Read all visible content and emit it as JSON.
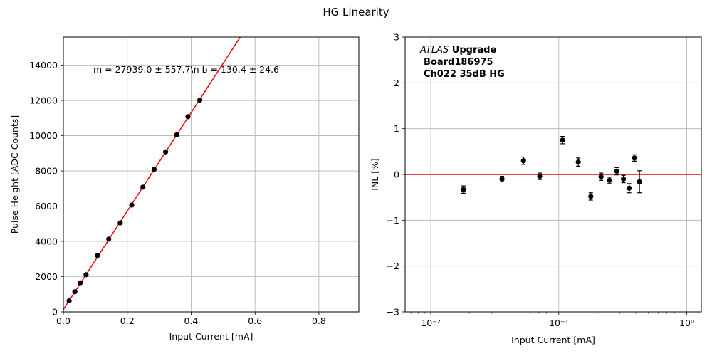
{
  "figure_title": "HG Linearity",
  "chart_data": [
    {
      "type": "scatter",
      "id": "left",
      "xlabel": "Input Current [mA]",
      "ylabel": "Pulse Height [ADC Counts]",
      "xlim": [
        0,
        0.925
      ],
      "ylim": [
        0,
        15600
      ],
      "x_scale": "linear",
      "grid": true,
      "xticks": [
        0,
        0.2,
        0.4,
        0.6,
        0.8
      ],
      "xtick_labels": [
        "0.0",
        "0.2",
        "0.4",
        "0.6",
        "0.8"
      ],
      "yticks": [
        0,
        2000,
        4000,
        6000,
        8000,
        10000,
        12000,
        14000
      ],
      "yticks_labels": [
        "0",
        "2000",
        "4000",
        "6000",
        "8000",
        "10000",
        "12000",
        "14000"
      ],
      "annotation": "m = 27939.0 ± 557.7\\n b = 130.4 ± 24.6",
      "fit_line": {
        "slope": 27939.0,
        "intercept": 130.4,
        "color": "#e8000b"
      },
      "points": {
        "x": [
          0.018,
          0.036,
          0.053,
          0.071,
          0.107,
          0.142,
          0.178,
          0.214,
          0.249,
          0.284,
          0.32,
          0.355,
          0.39,
          0.427
        ],
        "y": [
          630,
          1140,
          1650,
          2110,
          3200,
          4130,
          5050,
          6060,
          7080,
          8090,
          9080,
          10050,
          11080,
          12020
        ]
      }
    },
    {
      "type": "scatter",
      "id": "right",
      "xlabel": "Input Current [mA]",
      "ylabel": "INL [%]",
      "xlim": [
        0.0063,
        1.3
      ],
      "ylim": [
        -3,
        3
      ],
      "x_scale": "log",
      "grid": true,
      "xticks": [
        0.01,
        0.1,
        1
      ],
      "xtick_labels": [
        "10⁻²",
        "10⁻¹",
        "10⁰"
      ],
      "yticks": [
        -3,
        -2,
        -1,
        0,
        1,
        2,
        3
      ],
      "ytick_labels": [
        "−3",
        "−2",
        "−1",
        "0",
        "1",
        "2",
        "3"
      ],
      "reference_line": {
        "y": 0,
        "color": "#e8000b"
      },
      "annotation_lines": {
        "atlas": "ATLAS",
        "upgrade": " Upgrade",
        "board": "Board186975",
        "channel": "Ch022 35dB HG"
      },
      "points": {
        "x": [
          0.018,
          0.036,
          0.053,
          0.071,
          0.107,
          0.142,
          0.178,
          0.214,
          0.249,
          0.284,
          0.32,
          0.355,
          0.39,
          0.427
        ],
        "y": [
          -0.33,
          -0.1,
          0.3,
          -0.04,
          0.75,
          0.27,
          -0.48,
          -0.05,
          -0.13,
          0.07,
          -0.1,
          -0.3,
          0.36,
          -0.16
        ],
        "err": [
          0.08,
          0.06,
          0.08,
          0.07,
          0.08,
          0.09,
          0.08,
          0.08,
          0.07,
          0.08,
          0.08,
          0.1,
          0.07,
          0.24
        ]
      }
    }
  ]
}
